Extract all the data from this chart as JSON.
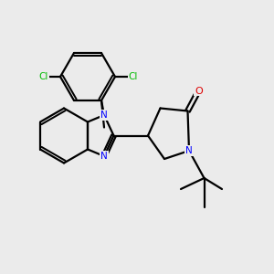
{
  "bg_color": "#ebebeb",
  "bond_color": "#000000",
  "bond_width": 1.6,
  "figsize": [
    3.0,
    3.0
  ],
  "dpi": 100,
  "xlim": [
    0,
    10
  ],
  "ylim": [
    0,
    10
  ]
}
